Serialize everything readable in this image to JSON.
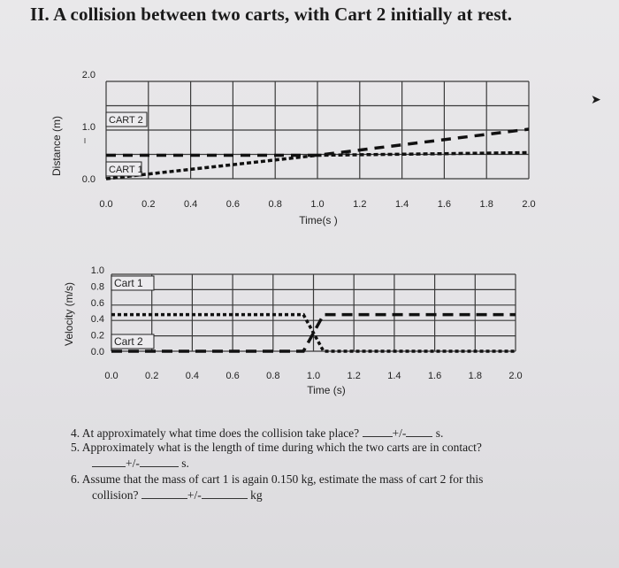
{
  "heading": "II. A collision between two carts, with Cart 2 initially at rest.",
  "chart_data": [
    {
      "type": "line",
      "xlabel": "Time(s )",
      "ylabel": "Distance (m)",
      "xlim": [
        0,
        2.0
      ],
      "ylim": [
        0,
        2.0
      ],
      "x_ticks": [
        "0.0",
        "0.2",
        "0.4",
        "0.6",
        "0.8",
        "1.0",
        "1.2",
        "1.4",
        "1.6",
        "1.8",
        "2.0"
      ],
      "y_ticks": [
        "0.0",
        "1.0",
        "2.0"
      ],
      "grid": true,
      "series": [
        {
          "name": "CART 1",
          "x": [
            0.0,
            1.0,
            2.0
          ],
          "y": [
            0.0,
            0.45,
            0.5
          ]
        },
        {
          "name": "CART 2",
          "x": [
            0.0,
            1.0,
            2.0
          ],
          "y": [
            0.45,
            0.45,
            0.95
          ]
        }
      ]
    },
    {
      "type": "line",
      "xlabel": "Time (s)",
      "ylabel": "Velocity (m/s)",
      "xlim": [
        0,
        2.0
      ],
      "ylim": [
        0,
        1.0
      ],
      "x_ticks": [
        "0.0",
        "0.2",
        "0.4",
        "0.6",
        "0.8",
        "1.0",
        "1.2",
        "1.4",
        "1.6",
        "1.8",
        "2.0"
      ],
      "y_ticks": [
        "0.0",
        "0.2",
        "0.4",
        "0.6",
        "0.8",
        "1.0"
      ],
      "grid": true,
      "series": [
        {
          "name": "Cart 1",
          "x": [
            0.0,
            0.95,
            1.05,
            2.0
          ],
          "y": [
            0.45,
            0.45,
            0.0,
            0.0
          ]
        },
        {
          "name": "Cart 2",
          "x": [
            0.0,
            0.95,
            1.05,
            2.0
          ],
          "y": [
            0.0,
            0.0,
            0.45,
            0.45
          ]
        }
      ]
    }
  ],
  "questions": {
    "q4_number": "4.",
    "q4_text": "At approximately what time does the collision take place?",
    "q5_number": "5.",
    "q5_text": "Approximately what is the length of time during which the two carts are in contact?",
    "q6_number": "6.",
    "q6_line1": "Assume that the mass of cart 1 is again 0.150 kg, estimate the mass of cart 2 for this",
    "q6_line2": "collision?",
    "plus_minus": "+/-",
    "unit_s": "s.",
    "unit_kg": "kg"
  }
}
